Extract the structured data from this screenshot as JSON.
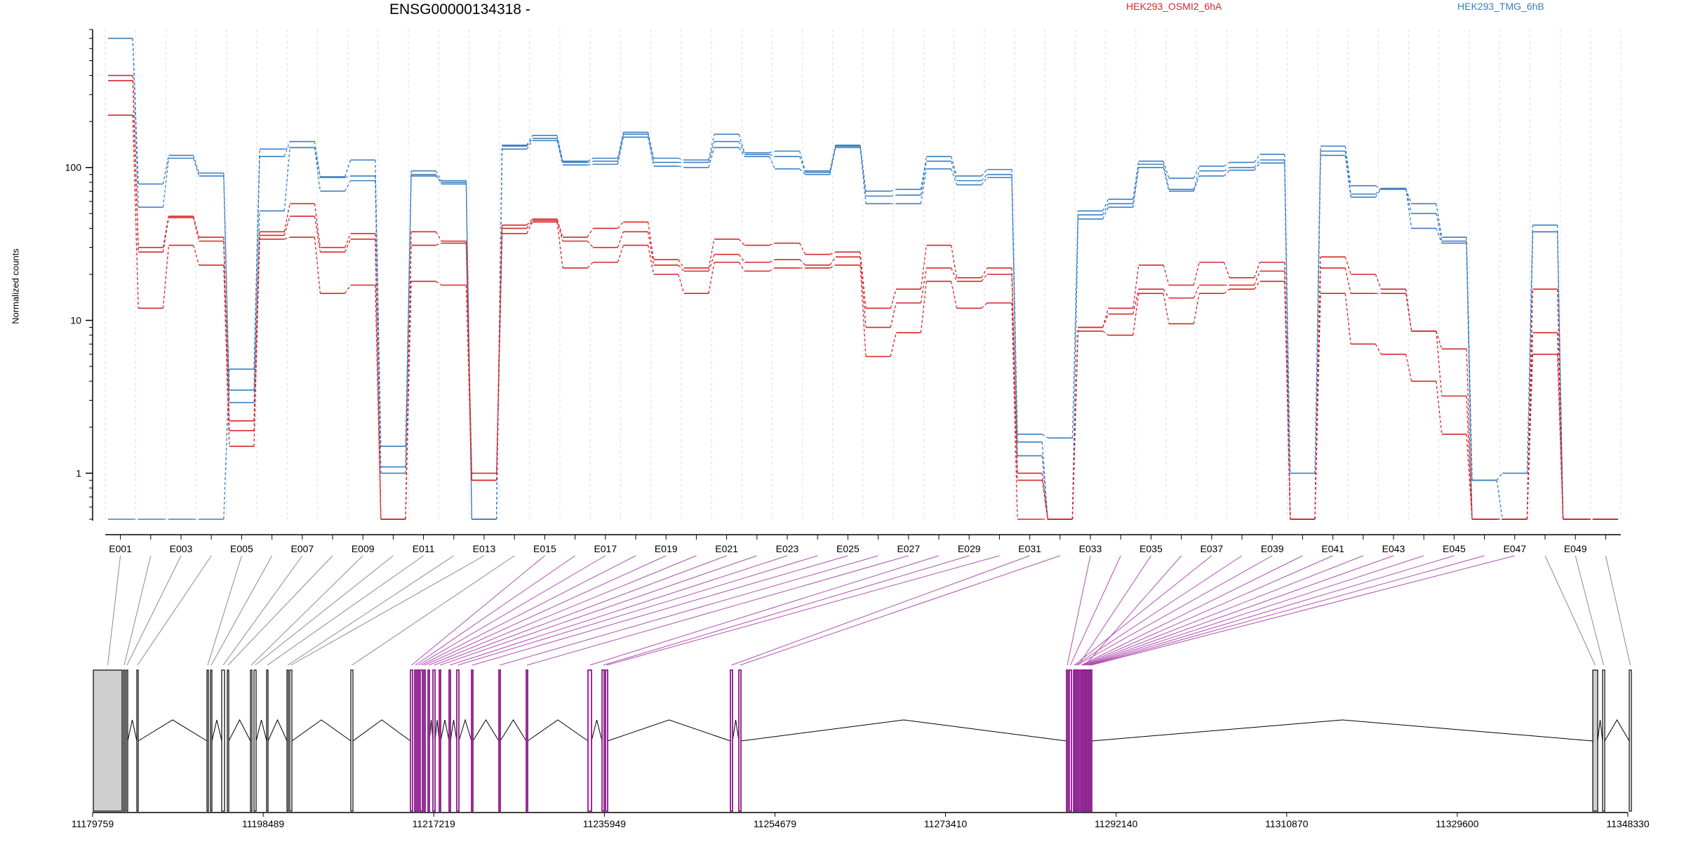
{
  "chart_data": {
    "type": "line",
    "title": "ENSG00000134318 -",
    "ylabel": "Normalized counts",
    "yscale": "log",
    "ylim": [
      0.5,
      800
    ],
    "yticks": [
      1,
      10,
      100
    ],
    "ytick_labels": [
      "1",
      "10",
      "100"
    ],
    "exons": [
      "E001",
      "E002",
      "E003",
      "E004",
      "E005",
      "E006",
      "E007",
      "E008",
      "E009",
      "E010",
      "E011",
      "E012",
      "E013",
      "E014",
      "E015",
      "E016",
      "E017",
      "E018",
      "E019",
      "E020",
      "E021",
      "E022",
      "E023",
      "E024",
      "E025",
      "E026",
      "E027",
      "E028",
      "E029",
      "E030",
      "E031",
      "E032",
      "E033",
      "E034",
      "E035",
      "E036",
      "E037",
      "E038",
      "E039",
      "E040",
      "E041",
      "E042",
      "E043",
      "E044",
      "E045",
      "E046",
      "E047",
      "E048",
      "E049",
      "E050"
    ],
    "exon_tick_labels": [
      "E001",
      "E003",
      "E005",
      "E007",
      "E009",
      "E011",
      "E013",
      "E015",
      "E017",
      "E019",
      "E021",
      "E023",
      "E025",
      "E027",
      "E029",
      "E031",
      "E033",
      "E035",
      "E037",
      "E039",
      "E041",
      "E043",
      "E045",
      "E047",
      "E049"
    ],
    "legend": [
      {
        "name": "HEK293_OSMI2_6hA",
        "color": "#d62728"
      },
      {
        "name": "HEK293_TMG_6hB",
        "color": "#3a7ebf"
      }
    ],
    "series": [
      {
        "group": "HEK293_TMG_6hB",
        "color": "#3a7ebf",
        "values": [
          700,
          78,
          120,
          92,
          3.5,
          118,
          148,
          86,
          88,
          1.0,
          95,
          82,
          0.5,
          138,
          155,
          108,
          110,
          165,
          108,
          108,
          148,
          122,
          118,
          93,
          138,
          65,
          66,
          110,
          82,
          90,
          1.6,
          0.5,
          49,
          58,
          105,
          72,
          95,
          100,
          112,
          1.0,
          128,
          67,
          73,
          50,
          33,
          0.9,
          0.5,
          38,
          0.5,
          0.5
        ]
      },
      {
        "group": "HEK293_TMG_6hB",
        "color": "#3a7ebf",
        "values": [
          700,
          55,
          115,
          88,
          2.9,
          52,
          135,
          70,
          82,
          1.1,
          90,
          78,
          0.5,
          132,
          150,
          104,
          105,
          158,
          102,
          100,
          135,
          118,
          98,
          90,
          135,
          58,
          58,
          98,
          77,
          86,
          1.3,
          0.5,
          46,
          55,
          100,
          70,
          88,
          96,
          107,
          0.5,
          120,
          64,
          73,
          40,
          32,
          0.5,
          0.5,
          38,
          0.5,
          0.5
        ]
      },
      {
        "group": "HEK293_TMG_6hB",
        "color": "#3a7ebf",
        "values": [
          0.5,
          0.5,
          0.5,
          0.5,
          4.8,
          132,
          135,
          87,
          112,
          1.5,
          88,
          80,
          0.5,
          140,
          162,
          110,
          115,
          170,
          115,
          112,
          165,
          125,
          128,
          95,
          140,
          70,
          72,
          118,
          88,
          97,
          1.8,
          1.7,
          52,
          62,
          110,
          85,
          102,
          108,
          122,
          0.5,
          138,
          76,
          72,
          58,
          35,
          0.9,
          1.0,
          42,
          0.5,
          0.5
        ]
      },
      {
        "group": "HEK293_OSMI2_6hA",
        "color": "#d62728",
        "values": [
          400,
          30,
          48,
          35,
          2.2,
          38,
          58,
          30,
          37,
          0.5,
          38,
          33,
          1.0,
          42,
          46,
          35,
          40,
          44,
          25,
          22,
          34,
          31,
          32,
          27,
          28,
          12,
          16,
          31,
          19,
          22,
          1.0,
          0.5,
          9,
          12,
          23,
          17,
          24,
          19,
          24,
          0.5,
          26,
          20,
          16,
          8.5,
          6.5,
          0.5,
          0.5,
          16,
          0.5,
          0.5
        ]
      },
      {
        "group": "HEK293_OSMI2_6hA",
        "color": "#d62728",
        "values": [
          370,
          28,
          47,
          33,
          1.9,
          36,
          48,
          28,
          34,
          0.5,
          31,
          32,
          0.9,
          40,
          45,
          33,
          30,
          38,
          23,
          21,
          27,
          24,
          25,
          23,
          26,
          9,
          13,
          22,
          18,
          20,
          0.9,
          0.5,
          9,
          11,
          16,
          14,
          17,
          17,
          21,
          0.5,
          22,
          15,
          15,
          8.5,
          3.2,
          0.5,
          0.5,
          8.3,
          0.5,
          0.5
        ]
      },
      {
        "group": "HEK293_OSMI2_6hA",
        "color": "#d62728",
        "values": [
          220,
          12,
          31,
          23,
          1.5,
          34,
          35,
          15,
          17,
          0.5,
          18,
          17,
          0.9,
          37,
          44,
          22,
          24,
          31,
          20,
          15,
          24,
          21,
          22,
          22,
          23,
          5.8,
          8.3,
          18,
          12,
          13,
          0.5,
          0.5,
          8.5,
          8,
          15,
          9.5,
          15,
          16,
          18,
          0.5,
          15,
          7,
          6,
          4,
          1.8,
          0.5,
          0.5,
          6,
          0.5,
          0.5
        ]
      }
    ],
    "gene_model": {
      "tick_labels": [
        "11179759",
        "11198489",
        "11217219",
        "11235949",
        "11254679",
        "11273410",
        "11292140",
        "11310870",
        "11329600",
        "11348330"
      ]
    }
  }
}
